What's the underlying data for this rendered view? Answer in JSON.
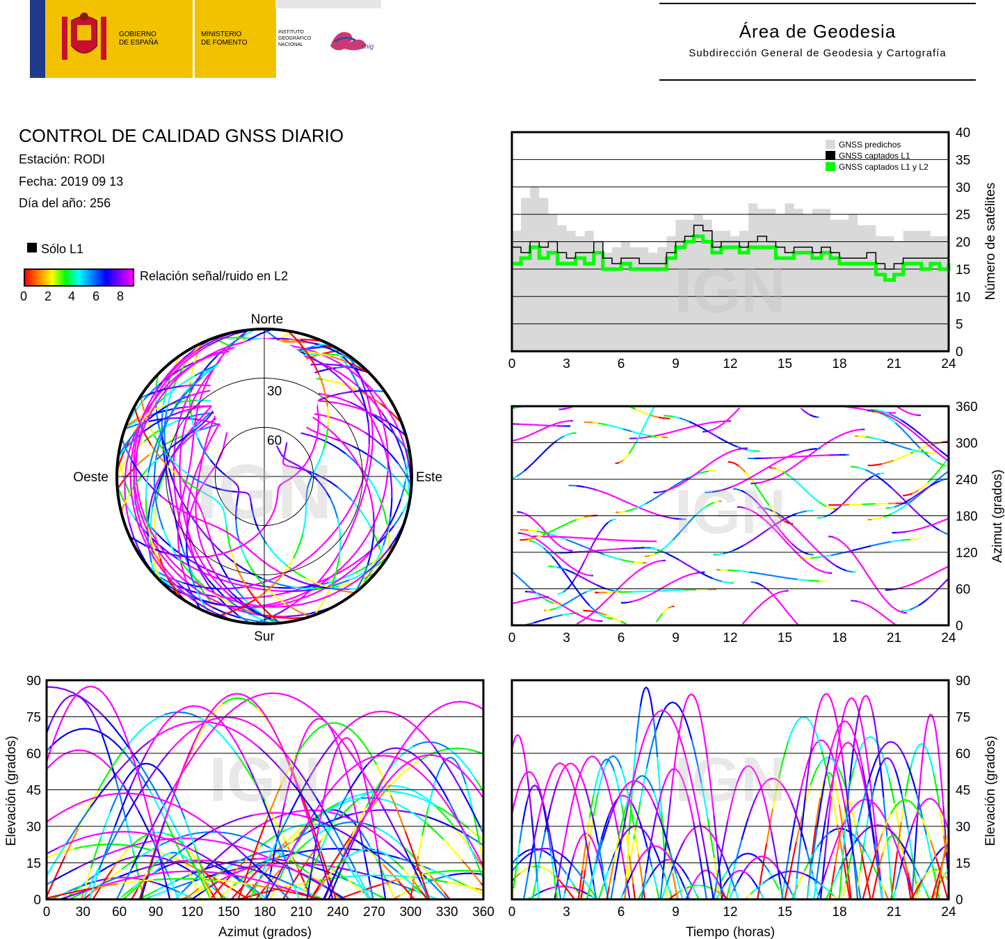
{
  "header": {
    "gov_line1": "GOBIERNO",
    "gov_line2": "DE ESPAÑA",
    "min_line1": "MINISTERIO",
    "min_line2": "DE FOMENTO",
    "ign_line1": "INSTITUTO",
    "ign_line2": "GEOGRÁFICO",
    "ign_line3": "NACIONAL",
    "cnig": "cnig",
    "title": "Área de Geodesia",
    "subtitle": "Subdirección General de Geodesia y Cartografía"
  },
  "info": {
    "title": "CONTROL DE CALIDAD GNSS DIARIO",
    "station": "Estación: RODI",
    "date": "Fecha: 2019 09 13",
    "doy": "Día del año: 256"
  },
  "legend": {
    "only_l1": "Sólo L1",
    "snr_label": "Relación señal/ruido en L2",
    "snr_ticks": [
      "0",
      "2",
      "4",
      "6",
      "8"
    ]
  },
  "watermark": "IGN",
  "colors": {
    "predicted": "#d9d9d9",
    "captured_l1": "#000000",
    "captured_l1_l2": "#00ff00"
  },
  "chart_data": [
    {
      "type": "area",
      "id": "satellites",
      "ylabel": "Número de satélites",
      "xlim": [
        0,
        24
      ],
      "ylim": [
        0,
        40
      ],
      "xticks": [
        0,
        3,
        6,
        9,
        12,
        15,
        18,
        21,
        24
      ],
      "yticks": [
        0,
        5,
        10,
        15,
        20,
        25,
        30,
        35,
        40
      ],
      "legend": [
        "GNSS predichos",
        "GNSS captados L1",
        "GNSS captados L1 y L2"
      ],
      "x": [
        0,
        0.5,
        1,
        1.5,
        2,
        2.5,
        3,
        3.5,
        4,
        4.5,
        5,
        5.5,
        6,
        6.5,
        7,
        7.5,
        8,
        8.5,
        9,
        9.5,
        10,
        10.5,
        11,
        11.5,
        12,
        12.5,
        13,
        13.5,
        14,
        14.5,
        15,
        15.5,
        16,
        16.5,
        17,
        17.5,
        18,
        18.5,
        19,
        19.5,
        20,
        20.5,
        21,
        21.5,
        22,
        22.5,
        23,
        23.5,
        24
      ],
      "series": [
        {
          "name": "GNSS predichos",
          "values": [
            22,
            28,
            30,
            28,
            25,
            23,
            22,
            21,
            22,
            20,
            18,
            19,
            20,
            19,
            19,
            18,
            19,
            21,
            24,
            24,
            25,
            24,
            22,
            22,
            21,
            22,
            27,
            26,
            26,
            25,
            27,
            26,
            25,
            26,
            26,
            24,
            24,
            25,
            23,
            23,
            21,
            21,
            20,
            22,
            22,
            22,
            21,
            21,
            22
          ]
        },
        {
          "name": "GNSS captados L1",
          "values": [
            19,
            18,
            20,
            19,
            20,
            18,
            17,
            18,
            18,
            20,
            17,
            16,
            17,
            17,
            16,
            16,
            16,
            18,
            20,
            21,
            23,
            22,
            19,
            20,
            20,
            19,
            20,
            21,
            20,
            19,
            18,
            19,
            19,
            18,
            19,
            18,
            17,
            17,
            17,
            18,
            16,
            15,
            16,
            17,
            17,
            17,
            17,
            17,
            18
          ]
        },
        {
          "name": "GNSS captados L1 y L2",
          "values": [
            16,
            17,
            19,
            17,
            18,
            16,
            16,
            17,
            16,
            18,
            15,
            15,
            16,
            15,
            15,
            15,
            15,
            17,
            19,
            20,
            21,
            20,
            18,
            19,
            19,
            18,
            19,
            19,
            19,
            17,
            17,
            18,
            18,
            17,
            18,
            17,
            16,
            16,
            16,
            16,
            14,
            13,
            14,
            16,
            16,
            15,
            16,
            15,
            16
          ]
        }
      ]
    },
    {
      "type": "scatter",
      "id": "skyplot",
      "labels": {
        "north": "Norte",
        "south": "Sur",
        "east": "Este",
        "west": "Oeste"
      },
      "rings": [
        "30",
        "60"
      ]
    },
    {
      "type": "line",
      "id": "azimuth_time",
      "ylabel": "Azimut (grados)",
      "xlim": [
        0,
        24
      ],
      "ylim": [
        0,
        360
      ],
      "xticks": [
        0,
        3,
        6,
        9,
        12,
        15,
        18,
        21,
        24
      ],
      "yticks": [
        0,
        60,
        120,
        180,
        240,
        300,
        360
      ]
    },
    {
      "type": "line",
      "id": "elev_azimuth",
      "xlabel": "Azimut (grados)",
      "ylabel": "Elevación (grados)",
      "xlim": [
        0,
        360
      ],
      "ylim": [
        0,
        90
      ],
      "xticks": [
        0,
        30,
        60,
        90,
        120,
        150,
        180,
        210,
        240,
        270,
        300,
        330,
        360
      ],
      "yticks": [
        0,
        15,
        30,
        45,
        60,
        75,
        90
      ]
    },
    {
      "type": "line",
      "id": "elev_time",
      "xlabel": "Tiempo (horas)",
      "ylabel": "Elevación (grados)",
      "xlim": [
        0,
        24
      ],
      "ylim": [
        0,
        90
      ],
      "xticks": [
        0,
        3,
        6,
        9,
        12,
        15,
        18,
        21,
        24
      ],
      "yticks": [
        0,
        15,
        30,
        45,
        60,
        75,
        90
      ]
    }
  ]
}
